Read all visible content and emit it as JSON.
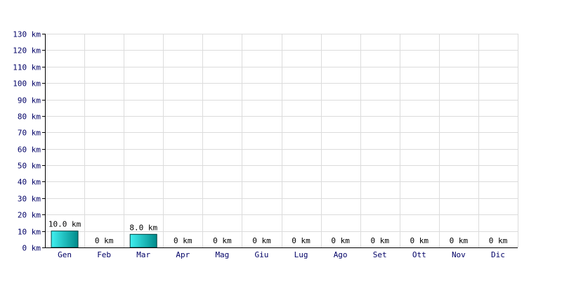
{
  "chart_data": {
    "type": "bar",
    "title": "",
    "xlabel": "",
    "ylabel": "",
    "unit": "km",
    "categories": [
      "Gen",
      "Feb",
      "Mar",
      "Apr",
      "Mag",
      "Giu",
      "Lug",
      "Ago",
      "Set",
      "Ott",
      "Nov",
      "Dic"
    ],
    "values": [
      10.0,
      0,
      8.0,
      0,
      0,
      0,
      0,
      0,
      0,
      0,
      0,
      0
    ],
    "value_labels": [
      "10.0 km",
      "0 km",
      "8.0 km",
      "0 km",
      "0 km",
      "0 km",
      "0 km",
      "0 km",
      "0 km",
      "0 km",
      "0 km",
      "0 km"
    ],
    "ylim": [
      0,
      130
    ],
    "y_ticks": [
      0,
      10,
      20,
      30,
      40,
      50,
      60,
      70,
      80,
      90,
      100,
      110,
      120,
      130
    ],
    "y_tick_labels": [
      "0 km",
      "10 km",
      "20 km",
      "30 km",
      "40 km",
      "50 km",
      "60 km",
      "70 km",
      "80 km",
      "90 km",
      "100 km",
      "110 km",
      "120 km",
      "130 km"
    ],
    "grid": true,
    "legend": "none",
    "colors": {
      "bar_light": "#40f0f0",
      "bar_dark": "#008a8a",
      "bar_stroke": "#004040",
      "grid": "#dcdcdc",
      "axis": "#000000",
      "tick_text": "#000066"
    }
  }
}
